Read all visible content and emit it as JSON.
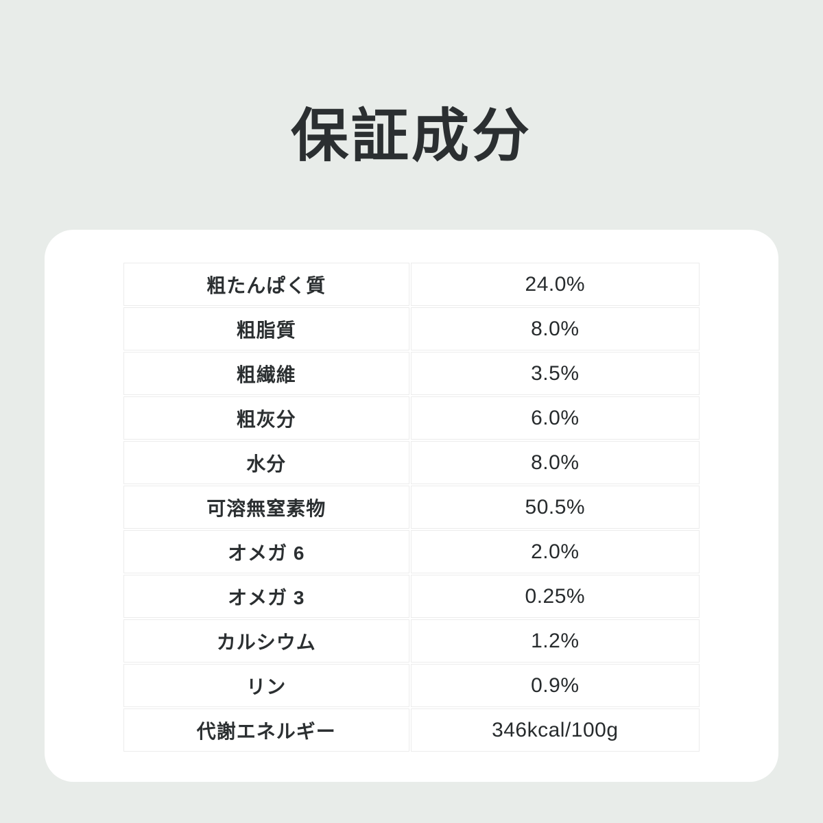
{
  "page": {
    "title": "保証成分",
    "background_color": "#e8ece9",
    "card_color": "#ffffff",
    "text_color": "#2b2f31",
    "cell_border_color": "#ececec"
  },
  "table": {
    "rows": [
      {
        "label": "粗たんぱく質",
        "value": "24.0%"
      },
      {
        "label": "粗脂質",
        "value": "8.0%"
      },
      {
        "label": "粗繊維",
        "value": "3.5%"
      },
      {
        "label": "粗灰分",
        "value": "6.0%"
      },
      {
        "label": "水分",
        "value": "8.0%"
      },
      {
        "label": "可溶無窒素物",
        "value": "50.5%"
      },
      {
        "label": "オメガ 6",
        "value": "2.0%"
      },
      {
        "label": "オメガ 3",
        "value": "0.25%"
      },
      {
        "label": "カルシウム",
        "value": "1.2%"
      },
      {
        "label": "リン",
        "value": "0.9%"
      },
      {
        "label": "代謝エネルギー",
        "value": "346kcal/100g"
      }
    ]
  }
}
